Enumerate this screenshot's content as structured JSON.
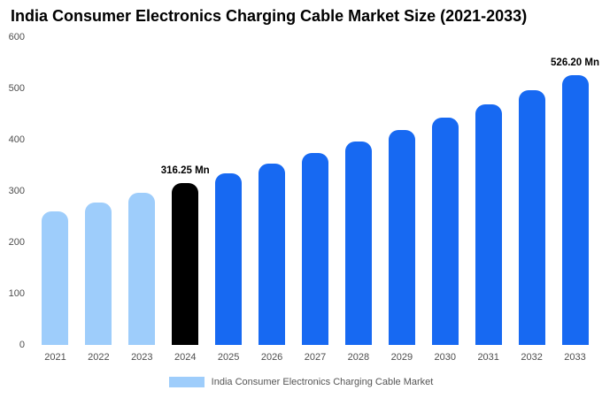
{
  "title": "India Consumer Electronics Charging Cable Market Size (2021-2033)",
  "chart_data": {
    "type": "bar",
    "title": "India Consumer Electronics Charging Cable Market Size (2021-2033)",
    "xlabel": "",
    "ylabel": "",
    "ylim": [
      0,
      600
    ],
    "yticks": [
      0,
      100,
      200,
      300,
      400,
      500,
      600
    ],
    "grid": false,
    "legend_position": "bottom-center",
    "categories": [
      "2021",
      "2022",
      "2023",
      "2024",
      "2025",
      "2026",
      "2027",
      "2028",
      "2029",
      "2030",
      "2031",
      "2032",
      "2033"
    ],
    "values": [
      260,
      277.5,
      296,
      316.25,
      334.6,
      354,
      374.5,
      396.1,
      419,
      443.2,
      468.9,
      496,
      526.2
    ],
    "annotations": [
      {
        "index": 3,
        "text": "316.25 Mn"
      },
      {
        "index": 12,
        "text": "526.20 Mn"
      }
    ],
    "colors": {
      "light_blue": "#9ecdfb",
      "blue": "#1769f2",
      "black": "#000000"
    },
    "bar_color_keys": [
      "light_blue",
      "light_blue",
      "light_blue",
      "black",
      "blue",
      "blue",
      "blue",
      "blue",
      "blue",
      "blue",
      "blue",
      "blue",
      "blue"
    ]
  },
  "legend": {
    "label": "India Consumer Electronics Charging Cable Market",
    "swatch_color_key": "light_blue"
  }
}
